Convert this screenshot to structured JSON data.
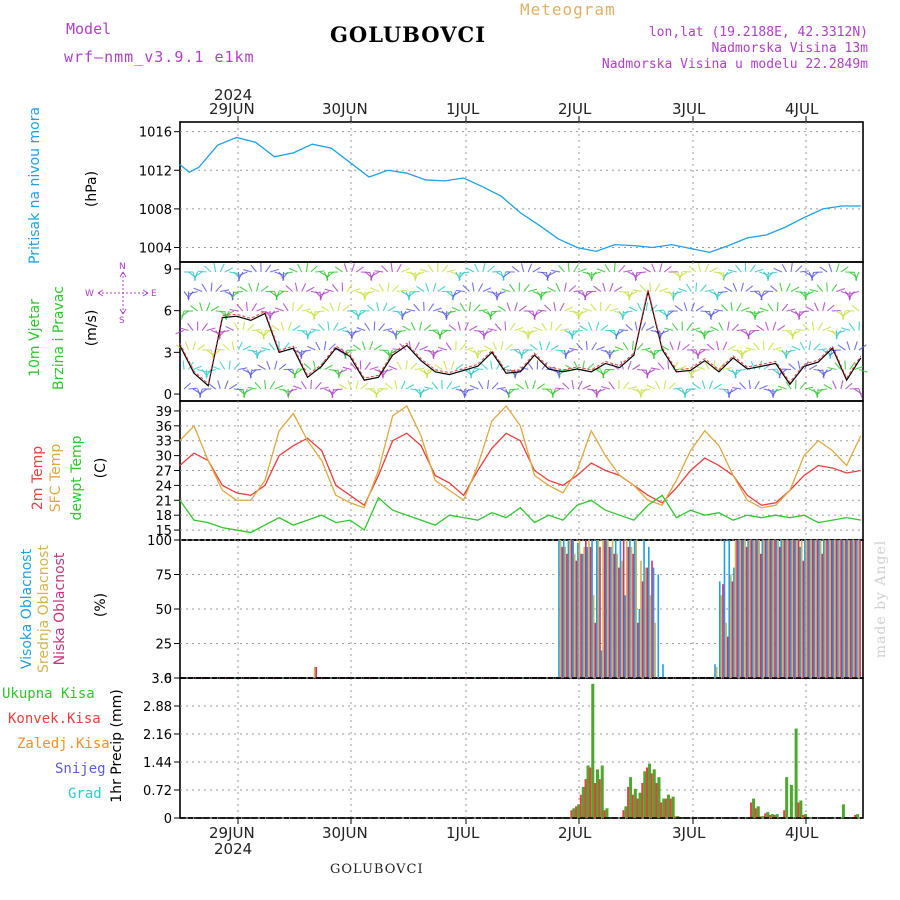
{
  "header": {
    "model_label": "Model",
    "model_name": "wrf–nmm_v3.9.1  e1km",
    "station": "GOLUBOVCI",
    "meteogram": "Meteogram",
    "lonlat": "lon,lat (19.2188E, 42.3312N)",
    "elev": "Nadmorska Visina 13m",
    "elev_model": "Nadmorska Visina u modelu 22.2849m",
    "footer_station": "GOLUBOVCI",
    "credit": "made by Angel"
  },
  "colors": {
    "pressure": "#1ea0e6",
    "wind_speed_black": "#000000",
    "wind_speed_red": "#e84040",
    "temp2m": "#e84040",
    "sfc_temp": "#e0a840",
    "dewpt": "#2ec82e",
    "cloud_high": "#1ea0e6",
    "cloud_mid": "#d2b450",
    "cloud_low": "#c8327a",
    "precip_total": "#4ca82c",
    "precip_conv": "#e84040",
    "wind_label": "#2ec82e",
    "precip_label_total": "#2ec82e",
    "precip_label_conv": "#e84040",
    "precip_label_frozen": "#ff8c28",
    "precip_label_snow": "#5a5ae6",
    "precip_label_hail": "#2ec8c8"
  },
  "top_axis": {
    "year": "2024",
    "days": [
      "29JUN",
      "30JUN",
      "1JUL",
      "2JUL",
      "3JUL",
      "4JUL"
    ]
  },
  "bottom_axis": {
    "year": "2024",
    "days": [
      "29JUN",
      "30JUN",
      "1JUL",
      "2JUL",
      "3JUL",
      "4JUL"
    ]
  },
  "panel_labels": {
    "pressure": "Pritisak na nivou mora",
    "pressure_unit": "(hPa)",
    "wind_a": "10m Vjetar",
    "wind_b": "Brzina i Pravac",
    "wind_unit": "(m/s)",
    "compass_n": "N",
    "compass_w": "W",
    "compass_e": "E",
    "compass_s": "S",
    "temp_a": "2m Temp",
    "temp_b": "SFC Temp",
    "temp_c": "dewpt Temp",
    "temp_unit": "(C)",
    "cloud_a": "Visoka Oblacnost",
    "cloud_b": "Srednja Oblacnost",
    "cloud_c": "Niska Oblacnost",
    "cloud_unit": "(%)",
    "precip_total": "Ukupna Kisa",
    "precip_conv": "Konvek.Kisa",
    "precip_frozen": "Zaledj.Kisa",
    "precip_snow": "Snijeg",
    "precip_hail": "Grad",
    "precip_unit": "1hr Precip (mm)"
  },
  "chart_data": [
    {
      "type": "line",
      "panel": "pressure",
      "ylim": [
        1002.5,
        1017
      ],
      "yticks": [
        "1004",
        "1008",
        "1012",
        "1016"
      ],
      "x_hours": [
        0,
        2,
        4,
        8,
        12,
        16,
        20,
        24,
        28,
        32,
        36,
        40,
        44,
        48,
        52,
        56,
        60,
        64,
        68,
        72,
        76,
        80,
        84,
        88,
        92,
        96,
        100,
        104,
        108,
        112,
        116,
        120,
        124,
        128,
        132,
        136,
        140,
        144
      ],
      "series": [
        {
          "values": [
            1012.6,
            1011.8,
            1012.3,
            1014.6,
            1015.4,
            1014.9,
            1013.4,
            1013.8,
            1014.7,
            1014.3,
            1012.8,
            1011.3,
            1012.0,
            1011.7,
            1011.0,
            1010.9,
            1011.2,
            1010.3,
            1009.3,
            1007.6,
            1006.3,
            1004.9,
            1004.0,
            1003.6,
            1004.3,
            1004.2,
            1004.0,
            1004.3,
            1003.9,
            1003.5,
            1004.2,
            1005.0,
            1005.3,
            1006.1,
            1007.1,
            1008.0,
            1008.3,
            1008.3
          ]
        }
      ]
    },
    {
      "type": "line",
      "panel": "wind",
      "ylim": [
        -0.5,
        9.5
      ],
      "yticks": [
        "0",
        "3",
        "6",
        "9"
      ],
      "x_hours": [
        0,
        3,
        6,
        9,
        12,
        15,
        18,
        21,
        24,
        27,
        30,
        33,
        36,
        39,
        42,
        45,
        48,
        51,
        54,
        57,
        60,
        63,
        66,
        69,
        72,
        75,
        78,
        81,
        84,
        87,
        90,
        93,
        96,
        99,
        102,
        105,
        108,
        111,
        114,
        117,
        120,
        123,
        126,
        129,
        132,
        135,
        138,
        141,
        144
      ],
      "series": [
        {
          "values": [
            3.5,
            1.5,
            0.6,
            5.5,
            5.6,
            5.3,
            5.8,
            3.0,
            3.3,
            1.2,
            2.0,
            3.3,
            2.7,
            1.0,
            1.2,
            2.8,
            3.5,
            2.4,
            1.6,
            1.4,
            1.7,
            2.0,
            3.0,
            1.5,
            1.6,
            2.8,
            1.8,
            1.6,
            1.8,
            1.6,
            2.2,
            1.9,
            2.8,
            7.4,
            3.2,
            1.6,
            1.7,
            2.4,
            1.6,
            2.6,
            1.8,
            2.0,
            2.2,
            0.7,
            2.0,
            2.3,
            3.3,
            1.0,
            2.6
          ]
        }
      ]
    },
    {
      "type": "line",
      "panel": "temperature",
      "ylim": [
        13,
        41
      ],
      "yticks": [
        "15",
        "18",
        "21",
        "24",
        "27",
        "30",
        "33",
        "36",
        "39"
      ],
      "x_hours": [
        0,
        3,
        6,
        9,
        12,
        15,
        18,
        21,
        24,
        27,
        30,
        33,
        36,
        39,
        42,
        45,
        48,
        51,
        54,
        57,
        60,
        63,
        66,
        69,
        72,
        75,
        78,
        81,
        84,
        87,
        90,
        93,
        96,
        99,
        102,
        105,
        108,
        111,
        114,
        117,
        120,
        123,
        126,
        129,
        132,
        135,
        138,
        141,
        144
      ],
      "series": [
        {
          "name": "2m Temp",
          "values": [
            28.0,
            30.5,
            29.0,
            24.0,
            22.5,
            22.0,
            24.0,
            30.0,
            32.0,
            33.5,
            31.0,
            24.0,
            22.0,
            20.0,
            26.0,
            33.0,
            34.5,
            32.0,
            26.0,
            24.5,
            22.0,
            27.0,
            31.5,
            34.5,
            33.0,
            27.0,
            25.0,
            24.0,
            26.0,
            28.5,
            27.0,
            26.0,
            24.0,
            22.0,
            20.5,
            23.5,
            27.0,
            29.5,
            28.0,
            26.0,
            22.0,
            20.0,
            20.5,
            23.0,
            26.0,
            28.0,
            27.5,
            26.5,
            27.0
          ]
        },
        {
          "name": "SFC Temp",
          "values": [
            33.0,
            36.0,
            29.0,
            23.0,
            21.0,
            21.0,
            25.0,
            35.0,
            38.5,
            33.0,
            29.0,
            22.0,
            20.5,
            19.5,
            27.0,
            38.0,
            40.0,
            34.0,
            25.0,
            23.0,
            21.0,
            28.0,
            37.0,
            40.0,
            36.0,
            26.0,
            24.0,
            22.5,
            27.0,
            35.0,
            30.0,
            26.0,
            24.0,
            21.0,
            20.0,
            25.0,
            31.0,
            35.0,
            32.0,
            26.0,
            21.0,
            19.5,
            20.0,
            23.0,
            30.0,
            33.0,
            31.0,
            28.0,
            34.0
          ]
        },
        {
          "name": "dewpt Temp",
          "values": [
            21.0,
            17.0,
            16.5,
            15.5,
            15.0,
            14.5,
            16.0,
            17.5,
            16.0,
            17.0,
            18.0,
            16.5,
            17.0,
            15.0,
            21.5,
            19.0,
            18.0,
            17.0,
            16.0,
            18.0,
            17.5,
            17.0,
            18.5,
            17.5,
            19.5,
            16.5,
            18.0,
            17.0,
            20.0,
            21.0,
            19.0,
            18.0,
            17.0,
            20.0,
            22.0,
            17.5,
            19.0,
            18.0,
            18.5,
            17.0,
            18.0,
            17.5,
            18.0,
            17.5,
            18.0,
            16.5,
            17.0,
            17.5,
            17.0
          ]
        }
      ]
    },
    {
      "type": "bar",
      "panel": "cloud",
      "ylim": [
        0,
        100
      ],
      "yticks": [
        "0",
        "25",
        "50",
        "75",
        "100"
      ],
      "x_hours": [
        0,
        28,
        28.4,
        80,
        81,
        82,
        83,
        84,
        85,
        86,
        87,
        88,
        89,
        90,
        91,
        92,
        93,
        94,
        95,
        96,
        97,
        98,
        99,
        100,
        101,
        102,
        103,
        104,
        105,
        106,
        107,
        108,
        109,
        110,
        111,
        112,
        113,
        114,
        115,
        116,
        117,
        118,
        119,
        120,
        121,
        122,
        123,
        124,
        125,
        126,
        127,
        128,
        129,
        130,
        131,
        132,
        133,
        134,
        135,
        136,
        137,
        138,
        139,
        140,
        141,
        142,
        143
      ],
      "series": [
        {
          "name": "Visoka Oblacnost",
          "values": [
            0,
            0,
            0,
            100,
            100,
            100,
            100,
            98,
            90,
            95,
            100,
            100,
            20,
            100,
            95,
            100,
            100,
            60,
            100,
            100,
            50,
            100,
            95,
            80,
            75,
            10,
            0,
            0,
            0,
            0,
            0,
            0,
            0,
            0,
            0,
            0,
            10,
            70,
            100,
            100,
            80,
            100,
            100,
            100,
            100,
            100,
            100,
            100,
            100,
            100,
            100,
            100,
            100,
            100,
            95,
            100,
            100,
            100,
            100,
            100,
            100,
            100,
            100,
            100,
            100,
            100,
            100
          ]
        },
        {
          "name": "Srednja Oblacnost",
          "values": [
            0,
            8,
            0,
            100,
            95,
            100,
            90,
            100,
            95,
            100,
            60,
            100,
            100,
            100,
            100,
            90,
            85,
            100,
            95,
            100,
            85,
            80,
            60,
            40,
            0,
            0,
            0,
            0,
            0,
            0,
            0,
            0,
            0,
            0,
            0,
            0,
            8,
            60,
            40,
            75,
            100,
            100,
            100,
            100,
            100,
            100,
            100,
            100,
            100,
            100,
            100,
            100,
            100,
            100,
            100,
            100,
            100,
            100,
            100,
            100,
            100,
            100,
            100,
            100,
            100,
            100,
            100
          ]
        },
        {
          "name": "Niska Oblacnost",
          "values": [
            0,
            8,
            0,
            95,
            90,
            100,
            85,
            90,
            100,
            95,
            40,
            95,
            100,
            95,
            90,
            80,
            100,
            95,
            90,
            40,
            70,
            80,
            85,
            0,
            0,
            0,
            0,
            0,
            0,
            0,
            0,
            0,
            0,
            0,
            0,
            0,
            0,
            68,
            30,
            70,
            100,
            100,
            95,
            100,
            100,
            90,
            100,
            100,
            100,
            95,
            100,
            100,
            100,
            100,
            85,
            100,
            100,
            100,
            90,
            100,
            100,
            100,
            100,
            100,
            100,
            100,
            100
          ]
        }
      ]
    },
    {
      "type": "bar",
      "panel": "precip",
      "ylim": [
        0,
        3.6
      ],
      "yticks": [
        "0",
        "0.72",
        "1.44",
        "2.16",
        "2.88",
        "3.6"
      ],
      "x_hours": [
        83,
        84,
        85,
        86,
        87,
        88,
        89,
        90,
        94,
        95,
        96,
        97,
        98,
        99,
        100,
        101,
        102,
        103,
        104,
        105,
        121,
        122,
        123,
        124,
        125,
        126,
        127,
        128,
        129,
        130,
        131,
        132,
        133,
        140,
        143
      ],
      "series": [
        {
          "name": "Ukupna Kisa",
          "values": [
            0.25,
            0.35,
            0.8,
            1.35,
            3.45,
            1.25,
            1.35,
            0.25,
            0.3,
            1.05,
            0.75,
            0.65,
            1.2,
            1.4,
            1.25,
            1.05,
            0.5,
            0.6,
            0.55,
            0.05,
            0.5,
            0.3,
            0.05,
            0.15,
            0.1,
            0.1,
            0.0,
            1.05,
            0.85,
            2.3,
            0.45,
            0.1,
            0.02,
            0.35,
            0.1
          ]
        },
        {
          "name": "Konvek.Kisa",
          "values": [
            0.2,
            0.3,
            0.6,
            1.0,
            1.3,
            0.9,
            1.0,
            0.2,
            0.2,
            0.8,
            0.6,
            0.5,
            0.9,
            1.3,
            1.15,
            0.9,
            0.4,
            0.5,
            0.5,
            0.04,
            0.4,
            0.25,
            0.04,
            0.12,
            0.08,
            0.08,
            0.0,
            0.2,
            0.0,
            0.0,
            0.4,
            0.08,
            0.02,
            0.0,
            0.08
          ]
        }
      ]
    }
  ]
}
